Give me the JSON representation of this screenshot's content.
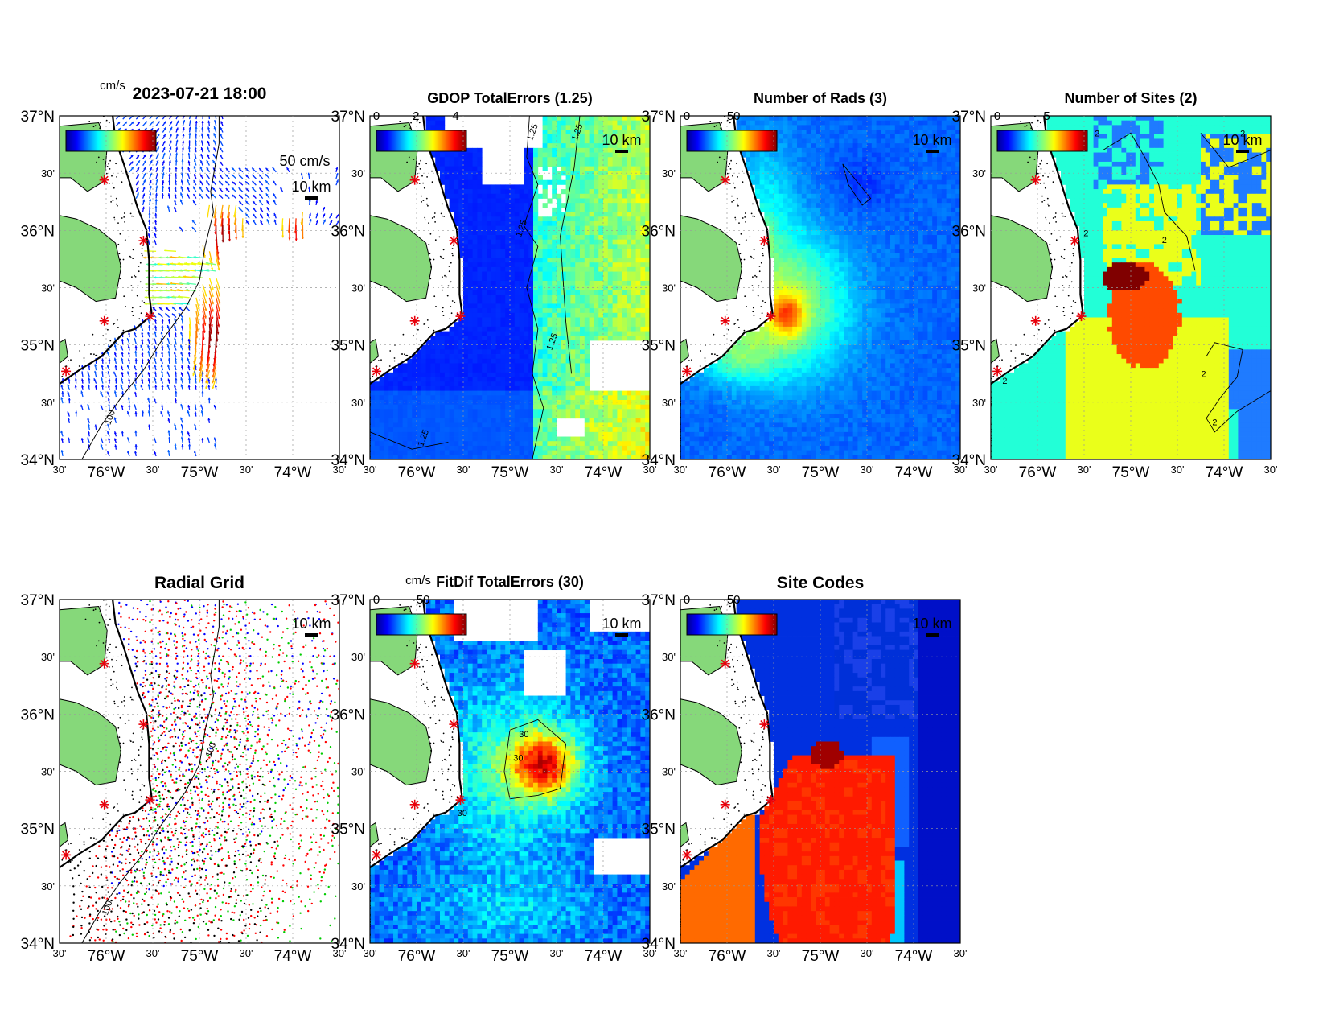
{
  "figure": {
    "timestamp": "2023-07-21 18:00",
    "axes": {
      "lat_labels": [
        "37°N",
        "30'",
        "36°N",
        "30'",
        "35°N",
        "30'",
        "34°N"
      ],
      "lon_labels": [
        "30'",
        "76°W",
        "30'",
        "75°W",
        "30'",
        "74°W",
        "30'"
      ],
      "lat_range": [
        34,
        37
      ],
      "lon_range": [
        -76.5,
        -73.5
      ]
    },
    "scale_bar_label": "10 km",
    "vector_scale_label": "50 cm/s",
    "cb_unit": "cm/s",
    "colors": {
      "land": "#86d87a",
      "ocean_background": "#ffffff",
      "site_marker": "#e8000b",
      "coast": "#000000"
    },
    "sites": [
      {
        "lon": -76.02,
        "lat": 36.44
      },
      {
        "lon": -75.6,
        "lat": 35.91
      },
      {
        "lon": -75.53,
        "lat": 35.25
      },
      {
        "lon": -76.02,
        "lat": 35.21
      },
      {
        "lon": -76.43,
        "lat": 34.77
      }
    ]
  },
  "chart_data": [
    {
      "id": "p1",
      "type": "quiver",
      "title": "2023-07-21 18:00",
      "colorbar": {
        "unit": "cm/s",
        "ticks": [],
        "range": [
          0,
          50
        ],
        "colormap": "jet"
      },
      "vector_scale": "50 cm/s",
      "scale_bar": "10 km",
      "contour_labels": [
        "100"
      ]
    },
    {
      "id": "p2",
      "type": "heatmap",
      "title": "GDOP TotalErrors (1.25)",
      "colorbar": {
        "ticks": [
          "0",
          "2",
          "4"
        ],
        "range": [
          0,
          5
        ],
        "colormap": "jet"
      },
      "scale_bar": "10 km",
      "contour_level": 1.25,
      "contour_labels": [
        "1.25",
        "1.25",
        "1.25",
        "1.25",
        "1.25"
      ]
    },
    {
      "id": "p3",
      "type": "heatmap",
      "title": "Number of Rads (3)",
      "colorbar": {
        "ticks": [
          "0",
          "50"
        ],
        "range": [
          0,
          100
        ],
        "colormap": "jet"
      },
      "scale_bar": "10 km",
      "contour_level": 3
    },
    {
      "id": "p4",
      "type": "heatmap",
      "title": "Number of Sites (2)",
      "colorbar": {
        "ticks": [
          "0",
          "5"
        ],
        "range": [
          0,
          10
        ],
        "colormap": "jet"
      },
      "scale_bar": "10 km",
      "contour_level": 2,
      "contour_labels": [
        "2",
        "2",
        "2",
        "2",
        "2",
        "2",
        "2"
      ],
      "categories": [
        {
          "sites": 2,
          "color": "#1f7bff"
        },
        {
          "sites": 3,
          "color": "#22ffd7"
        },
        {
          "sites": 4,
          "color": "#eaff1a"
        },
        {
          "sites": 5,
          "color": "#ff4a00"
        },
        {
          "sites": 6,
          "color": "#800000"
        }
      ]
    },
    {
      "id": "p5",
      "type": "scatter",
      "title": "Radial Grid",
      "scale_bar": "10 km",
      "contour_labels": [
        "100",
        "100"
      ],
      "series": [
        {
          "color": "#0000ff"
        },
        {
          "color": "#ff0000"
        },
        {
          "color": "#00cc00"
        },
        {
          "color": "#000000"
        }
      ]
    },
    {
      "id": "p6",
      "type": "heatmap",
      "title": "FitDif TotalErrors (30)",
      "colorbar": {
        "unit": "cm/s",
        "ticks": [
          "0",
          "50"
        ],
        "range": [
          0,
          100
        ],
        "colormap": "jet"
      },
      "scale_bar": "10 km",
      "contour_level": 30,
      "contour_labels": [
        "30",
        "30",
        "30"
      ]
    },
    {
      "id": "p7",
      "type": "heatmap",
      "title": "Site Codes",
      "colorbar": {
        "ticks": [
          "0",
          "50"
        ],
        "range": [
          0,
          100
        ],
        "colormap": "jet"
      },
      "scale_bar": "10 km"
    }
  ]
}
